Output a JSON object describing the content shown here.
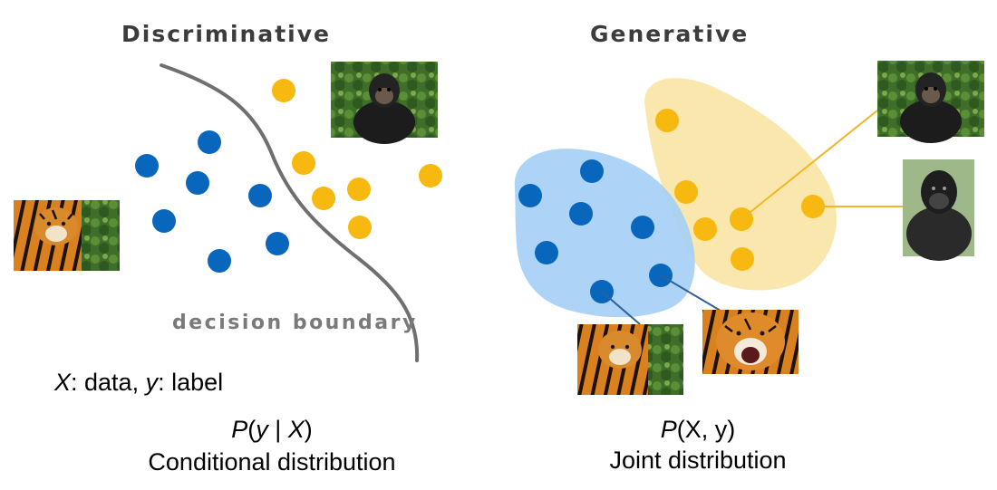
{
  "discriminative": {
    "title": "Discriminative",
    "boundary_label": "decision boundary",
    "legend": {
      "x_symbol": "X",
      "x_text": ": data, ",
      "y_symbol": "y",
      "y_text": ": label"
    },
    "formula": {
      "p": "P",
      "open": "(",
      "y": "y",
      "bar": " | ",
      "x": "X",
      "close": ")"
    },
    "caption": "Conditional distribution"
  },
  "generative": {
    "title": "Generative",
    "formula": {
      "p": "P",
      "rest": "(X, y)"
    },
    "caption": "Joint distribution"
  },
  "colors": {
    "class_blue": "#0866bd",
    "class_yellow": "#f7b90f",
    "region_blue": "#a6d0f5",
    "region_yellow": "#fae5a6",
    "boundary": "#6f6f6f",
    "connector_blue": "#2e5f9a",
    "connector_yellow": "#f2b626"
  },
  "images": {
    "chimp_left": "chimpanzee photo",
    "tiger_left": "tiger photo",
    "chimp_right": "chimpanzee photo",
    "gorilla_right": "gorilla photo",
    "tiger_right_calm": "tiger photo",
    "tiger_right_roaring": "roaring tiger photo"
  }
}
